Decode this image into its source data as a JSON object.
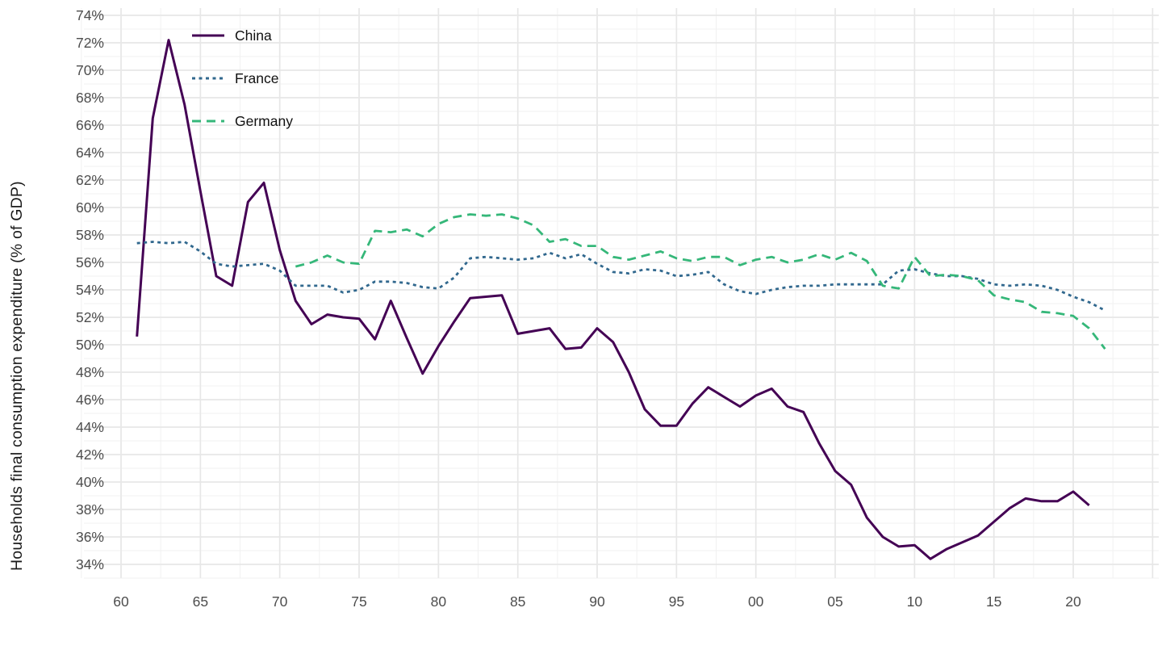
{
  "figure": {
    "y_axis_title": "Households final consumption expenditure (% of GDP)",
    "x_tick_labels": [
      "60",
      "65",
      "70",
      "75",
      "80",
      "85",
      "90",
      "95",
      "00",
      "05",
      "10",
      "15",
      "20"
    ],
    "y_tick_labels": [
      "34%",
      "36%",
      "38%",
      "40%",
      "42%",
      "44%",
      "46%",
      "48%",
      "50%",
      "52%",
      "54%",
      "56%",
      "58%",
      "60%",
      "62%",
      "64%",
      "66%",
      "68%",
      "70%",
      "72%",
      "74%"
    ],
    "tick_color": "#4d4d4d",
    "grid_major_color": "#e7e7e7",
    "grid_minor_color": "#f1f1f1",
    "background_color": "#ffffff"
  },
  "legend": {
    "position": "top-left-inside",
    "items": [
      {
        "label": "China",
        "color": "#440154",
        "style": "solid"
      },
      {
        "label": "France",
        "color": "#31688e",
        "style": "dotted"
      },
      {
        "label": "Germany",
        "color": "#35b779",
        "style": "dashed"
      }
    ]
  },
  "chart_data": {
    "type": "line",
    "title": "",
    "xlabel": "",
    "ylabel": "Households final consumption expenditure (% of GDP)",
    "x_axis_years": [
      1960,
      1965,
      1970,
      1975,
      1980,
      1985,
      1990,
      1995,
      2000,
      2005,
      2010,
      2015,
      2020
    ],
    "ylim": [
      33,
      74.6
    ],
    "xlim": [
      1957.5,
      2025.5
    ],
    "grid": true,
    "legend_position": "top-left",
    "series": [
      {
        "name": "China",
        "color": "#440154",
        "line_style": "solid",
        "start_year": 1961,
        "end_year": 2021,
        "values": [
          50.6,
          66.5,
          72.2,
          67.5,
          61.2,
          55.0,
          54.3,
          60.4,
          61.8,
          56.9,
          53.2,
          51.5,
          52.2,
          52.0,
          51.9,
          50.4,
          53.2,
          50.5,
          47.9,
          49.9,
          51.7,
          53.4,
          53.5,
          53.6,
          50.8,
          51.0,
          51.2,
          49.7,
          49.8,
          51.2,
          50.2,
          48.0,
          45.3,
          44.1,
          44.1,
          45.7,
          46.9,
          46.2,
          45.5,
          46.3,
          46.8,
          45.5,
          45.1,
          42.8,
          40.8,
          39.8,
          37.4,
          36.0,
          35.3,
          35.4,
          34.4,
          35.1,
          35.6,
          36.1,
          37.1,
          38.1,
          38.8,
          38.6,
          38.6,
          39.3,
          38.3
        ]
      },
      {
        "name": "France",
        "color": "#31688e",
        "line_style": "dotted",
        "start_year": 1961,
        "end_year": 2022,
        "values": [
          57.4,
          57.5,
          57.4,
          57.5,
          56.8,
          55.9,
          55.7,
          55.8,
          55.9,
          55.4,
          54.3,
          54.3,
          54.3,
          53.8,
          54.0,
          54.6,
          54.6,
          54.5,
          54.2,
          54.1,
          54.9,
          56.3,
          56.4,
          56.3,
          56.2,
          56.3,
          56.7,
          56.3,
          56.6,
          55.9,
          55.3,
          55.2,
          55.5,
          55.4,
          55.0,
          55.1,
          55.3,
          54.4,
          53.9,
          53.7,
          54.0,
          54.2,
          54.3,
          54.3,
          54.4,
          54.4,
          54.4,
          54.4,
          55.4,
          55.5,
          55.2,
          55.0,
          55.0,
          54.8,
          54.4,
          54.3,
          54.4,
          54.3,
          54.0,
          53.5,
          53.1,
          52.5
        ]
      },
      {
        "name": "Germany",
        "color": "#35b779",
        "line_style": "dashed",
        "start_year": 1971,
        "end_year": 2022,
        "values": [
          55.7,
          56.0,
          56.5,
          56.0,
          55.9,
          58.3,
          58.2,
          58.4,
          57.9,
          58.8,
          59.3,
          59.5,
          59.4,
          59.5,
          59.2,
          58.7,
          57.5,
          57.7,
          57.2,
          57.2,
          56.4,
          56.2,
          56.5,
          56.8,
          56.3,
          56.1,
          56.4,
          56.4,
          55.8,
          56.2,
          56.4,
          56.0,
          56.2,
          56.6,
          56.2,
          56.7,
          56.1,
          54.3,
          54.1,
          56.4,
          55.0,
          55.1,
          55.0,
          54.7,
          53.6,
          53.3,
          53.1,
          52.4,
          52.3,
          52.1,
          51.2,
          49.7
        ]
      }
    ]
  }
}
